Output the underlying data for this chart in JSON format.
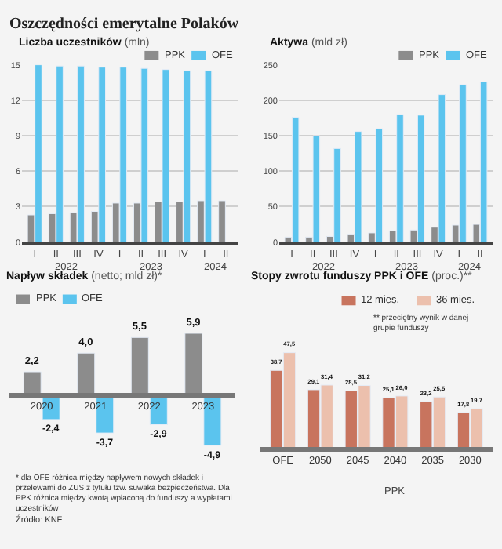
{
  "chart_data": [
    {
      "type": "bar",
      "title": "Liczba uczestników",
      "subtitle": "(mln)",
      "annotations": [
        "Oszczędności emerytalne Polaków",
        "2022",
        "2023",
        "2024"
      ],
      "categories": [
        "I",
        "II",
        "III",
        "IV",
        "I",
        "II",
        "III",
        "IV",
        "I",
        "II"
      ],
      "series": [
        {
          "name": "PPK",
          "color": "#8c8c8c",
          "values": [
            2.3,
            2.4,
            2.5,
            2.6,
            3.3,
            3.3,
            3.4,
            3.4,
            3.5,
            3.5
          ]
        },
        {
          "name": "OFE",
          "color": "#5bc4ee",
          "values": [
            15.0,
            14.9,
            14.9,
            14.8,
            14.8,
            14.7,
            14.6,
            14.5,
            14.5,
            null
          ]
        }
      ],
      "ylim": [
        0,
        15
      ],
      "yticks": [
        0,
        3,
        6,
        9,
        12,
        15
      ],
      "grid": "y",
      "legend": "top right"
    },
    {
      "type": "bar",
      "title": "Aktywa",
      "subtitle": "(mld zł)",
      "annotations": [
        "2022",
        "2023",
        "2024"
      ],
      "categories": [
        "I",
        "II",
        "III",
        "IV",
        "I",
        "II",
        "III",
        "IV",
        "I",
        "II"
      ],
      "series": [
        {
          "name": "PPK",
          "color": "#8c8c8c",
          "values": [
            7,
            7,
            8,
            11,
            13,
            16,
            17,
            21,
            24,
            25
          ]
        },
        {
          "name": "OFE",
          "color": "#5bc4ee",
          "values": [
            176,
            150,
            132,
            156,
            160,
            180,
            179,
            208,
            222,
            226
          ]
        }
      ],
      "ylim": [
        0,
        250
      ],
      "yticks": [
        0,
        50,
        100,
        150,
        200,
        250
      ],
      "grid": "y",
      "legend": "top right"
    },
    {
      "type": "bar",
      "title": "Napływ składek",
      "subtitle": "(netto; mld zł)*",
      "annotations": [
        "* dla OFE różnica między napływem nowych składek i przelewami do ZUS z tytułu tzw. suwaka bezpieczeństwa. Dla PPK różnica między kwotą wpłaconą do funduszy a wypłatami uczestników",
        "Źródło: KNF"
      ],
      "categories": [
        "2020",
        "2021",
        "2022",
        "2023"
      ],
      "series": [
        {
          "name": "PPK",
          "color": "#8c8c8c",
          "values": [
            2.2,
            4.0,
            5.5,
            5.9
          ],
          "value_labels": [
            "2,2",
            "4,0",
            "5,5",
            "5,9"
          ]
        },
        {
          "name": "OFE",
          "color": "#5bc4ee",
          "values": [
            -2.4,
            -3.7,
            -2.9,
            -4.9
          ],
          "value_labels": [
            "-2,4",
            "-3,7",
            "-2,9",
            "-4,9"
          ]
        }
      ],
      "tick_labels": "x",
      "legend": "top left"
    },
    {
      "type": "bar",
      "title": "Stopy zwrotu funduszy PPK i OFE",
      "subtitle": "(proc.)**",
      "annotations": [
        "PPK",
        "** przeciętny wynik w danej grupie funduszy"
      ],
      "categories": [
        "OFE",
        "2050",
        "2045",
        "2040",
        "2035",
        "2030"
      ],
      "series": [
        {
          "name": "12 mies.",
          "color": "#c8745e",
          "values": [
            38.7,
            29.1,
            28.5,
            25.1,
            23.2,
            17.8
          ],
          "value_labels": [
            "38,7",
            "29,1",
            "28,5",
            "25,1",
            "23,2",
            "17,8"
          ]
        },
        {
          "name": "36 mies.",
          "color": "#ecc0ad",
          "values": [
            47.5,
            31.4,
            31.2,
            26.0,
            25.5,
            19.7
          ],
          "value_labels": [
            "47,5",
            "31,4",
            "31,2",
            "26,0",
            "25,5",
            "19,7"
          ]
        }
      ],
      "tick_labels": "x",
      "legend": "top right"
    }
  ]
}
